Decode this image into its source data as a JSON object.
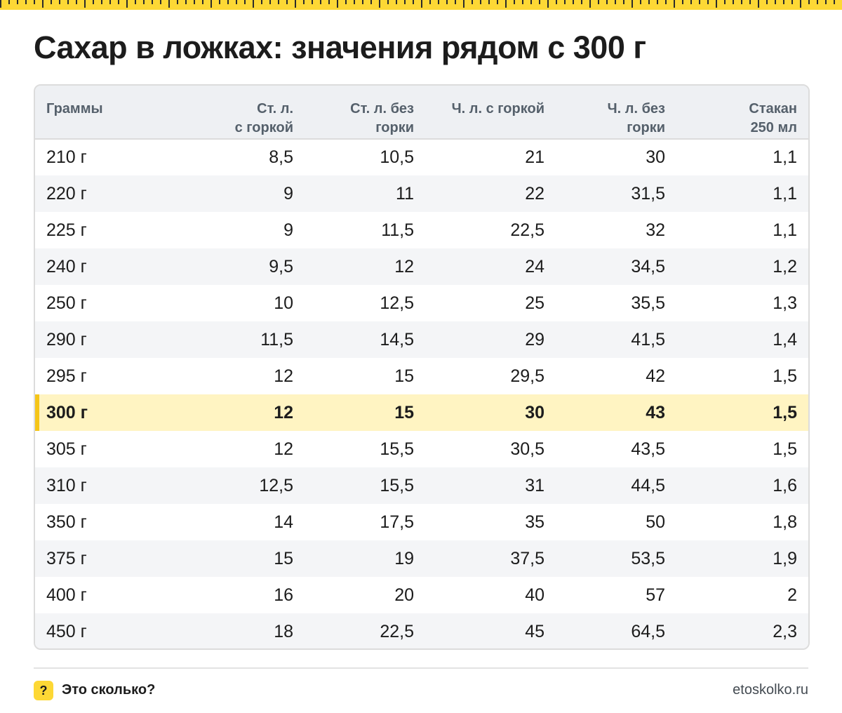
{
  "title": "Сахар в ложках: значения рядом с 300 г",
  "colors": {
    "accent_yellow": "#fdd835",
    "highlight_row": "#fff4c2",
    "header_bg": "#eef0f3"
  },
  "table": {
    "headers": [
      {
        "line1": "Граммы",
        "line2": ""
      },
      {
        "line1": "Ст. л.",
        "line2": "с горкой"
      },
      {
        "line1": "Ст. л. без",
        "line2": "горки"
      },
      {
        "line1": "Ч. л. с горкой",
        "line2": ""
      },
      {
        "line1": "Ч. л. без",
        "line2": "горки"
      },
      {
        "line1": "Стакан",
        "line2": "250 мл"
      }
    ],
    "highlight_row_index": 7,
    "rows": [
      [
        "210 г",
        "8,5",
        "10,5",
        "21",
        "30",
        "1,1"
      ],
      [
        "220 г",
        "9",
        "11",
        "22",
        "31,5",
        "1,1"
      ],
      [
        "225 г",
        "9",
        "11,5",
        "22,5",
        "32",
        "1,1"
      ],
      [
        "240 г",
        "9,5",
        "12",
        "24",
        "34,5",
        "1,2"
      ],
      [
        "250 г",
        "10",
        "12,5",
        "25",
        "35,5",
        "1,3"
      ],
      [
        "290 г",
        "11,5",
        "14,5",
        "29",
        "41,5",
        "1,4"
      ],
      [
        "295 г",
        "12",
        "15",
        "29,5",
        "42",
        "1,5"
      ],
      [
        "300 г",
        "12",
        "15",
        "30",
        "43",
        "1,5"
      ],
      [
        "305 г",
        "12",
        "15,5",
        "30,5",
        "43,5",
        "1,5"
      ],
      [
        "310 г",
        "12,5",
        "15,5",
        "31",
        "44,5",
        "1,6"
      ],
      [
        "350 г",
        "14",
        "17,5",
        "35",
        "50",
        "1,8"
      ],
      [
        "375 г",
        "15",
        "19",
        "37,5",
        "53,5",
        "1,9"
      ],
      [
        "400 г",
        "16",
        "20",
        "40",
        "57",
        "2"
      ],
      [
        "450 г",
        "18",
        "22,5",
        "45",
        "64,5",
        "2,3"
      ]
    ]
  },
  "footer": {
    "badge_symbol": "?",
    "brand": "Это сколько?",
    "site": "etoskolko.ru"
  }
}
